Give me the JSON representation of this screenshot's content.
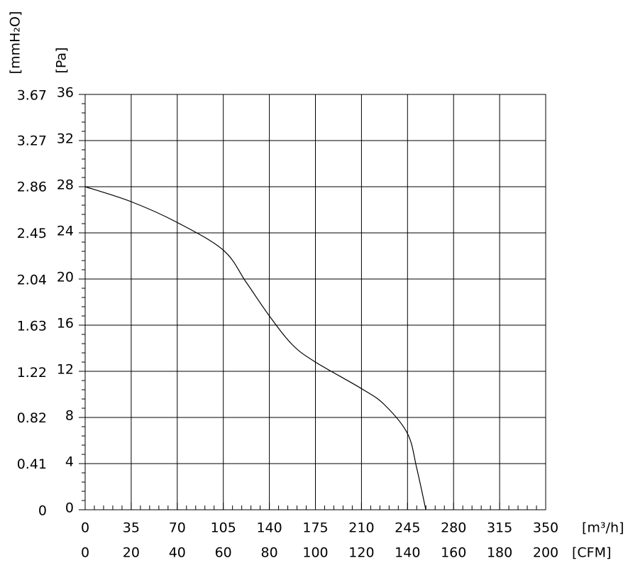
{
  "chart_data": {
    "type": "line",
    "x": [
      0,
      35,
      70,
      105,
      122.5,
      140,
      157.5,
      175,
      210,
      227.5,
      245,
      252,
      258.9
    ],
    "values": [
      28,
      26.7,
      24.9,
      22.5,
      19.7,
      16.8,
      14.3,
      12.8,
      10.5,
      9.1,
      6.6,
      3.6,
      0
    ],
    "color": "#000000",
    "xlim": [
      0,
      350
    ],
    "xticks": [
      0,
      35,
      70,
      105,
      140,
      175,
      210,
      245,
      280,
      315,
      350
    ],
    "x2lim": [
      0,
      200
    ],
    "x2ticks": [
      0,
      20,
      40,
      60,
      80,
      100,
      120,
      140,
      160,
      180,
      200
    ],
    "ylim": [
      0,
      36
    ],
    "yticks": [
      0,
      4,
      8,
      12,
      16,
      20,
      24,
      28,
      32,
      36
    ],
    "y2lim": [
      0,
      3.67
    ],
    "y2ticks": [
      0,
      0.41,
      0.82,
      1.22,
      1.63,
      2.04,
      2.45,
      2.86,
      3.27,
      3.67
    ],
    "xlabel": "[m³/h]",
    "x2label": "[CFM]",
    "ylabel": "[Pa]",
    "y2label": "[mmH₂O]",
    "grid": true
  }
}
